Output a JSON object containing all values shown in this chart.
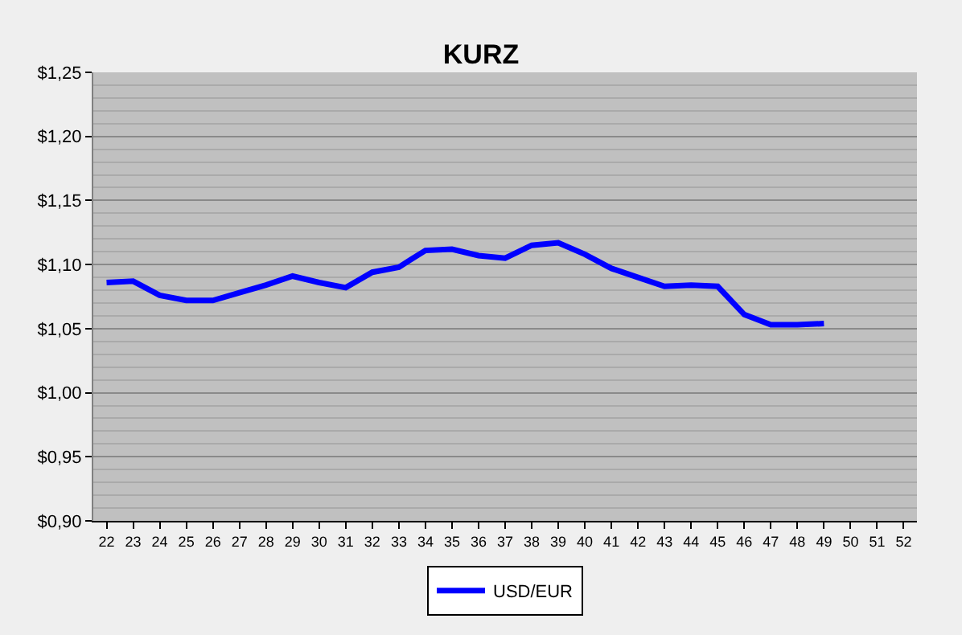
{
  "chart_data": {
    "type": "line",
    "title": "KURZ",
    "categories": [
      "22",
      "23",
      "24",
      "25",
      "26",
      "27",
      "28",
      "29",
      "30",
      "31",
      "32",
      "33",
      "34",
      "35",
      "36",
      "37",
      "38",
      "39",
      "40",
      "41",
      "42",
      "43",
      "44",
      "45",
      "46",
      "47",
      "48",
      "49",
      "50",
      "51",
      "52"
    ],
    "series": [
      {
        "name": "USD/EUR",
        "color": "#0000ff",
        "values": [
          1.086,
          1.087,
          1.076,
          1.072,
          1.072,
          1.078,
          1.084,
          1.091,
          1.086,
          1.082,
          1.094,
          1.098,
          1.111,
          1.112,
          1.107,
          1.105,
          1.115,
          1.117,
          1.108,
          1.097,
          1.09,
          1.083,
          1.084,
          1.083,
          1.061,
          1.053,
          1.053,
          1.054,
          null,
          null,
          null
        ]
      }
    ],
    "ylim": [
      0.9,
      1.25
    ],
    "yticks": [
      {
        "value": 0.9,
        "label": "$0,90"
      },
      {
        "value": 0.95,
        "label": "$0,95"
      },
      {
        "value": 1.0,
        "label": "$1,00"
      },
      {
        "value": 1.05,
        "label": "$1,05"
      },
      {
        "value": 1.1,
        "label": "$1,10"
      },
      {
        "value": 1.15,
        "label": "$1,15"
      },
      {
        "value": 1.2,
        "label": "$1,20"
      },
      {
        "value": 1.25,
        "label": "$1,25"
      }
    ],
    "grid": "y",
    "legend": "bottom",
    "marker": "none",
    "line_style": "solid"
  }
}
